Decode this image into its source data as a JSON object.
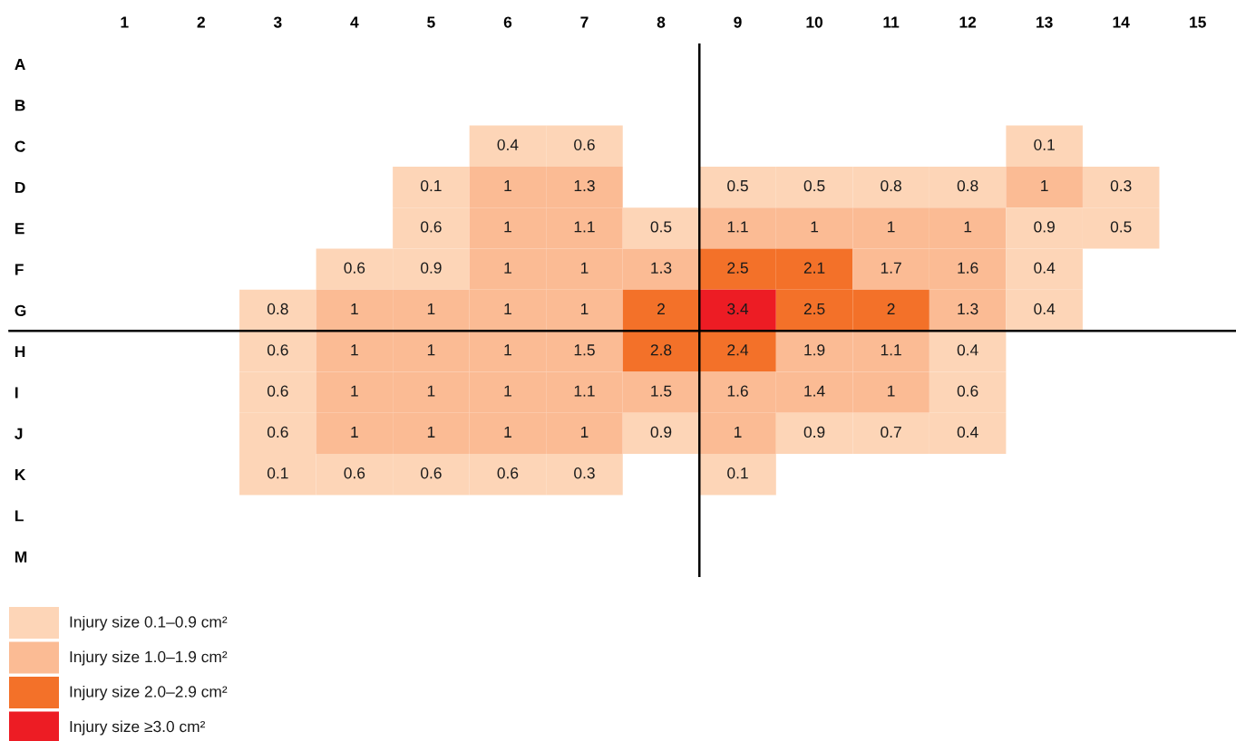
{
  "chart_data": {
    "type": "heatmap",
    "categories": [
      "1",
      "2",
      "3",
      "4",
      "5",
      "6",
      "7",
      "8",
      "9",
      "10",
      "11",
      "12",
      "13",
      "14",
      "15"
    ],
    "y_categories": [
      "A",
      "B",
      "C",
      "D",
      "E",
      "F",
      "G",
      "H",
      "I",
      "J",
      "K",
      "L",
      "M"
    ],
    "cells": [
      [
        null,
        null,
        null,
        null,
        null,
        null,
        null,
        null,
        null,
        null,
        null,
        null,
        null,
        null,
        null
      ],
      [
        null,
        null,
        null,
        null,
        null,
        null,
        null,
        null,
        null,
        null,
        null,
        null,
        null,
        null,
        null
      ],
      [
        null,
        null,
        null,
        null,
        null,
        0.4,
        0.6,
        null,
        null,
        null,
        null,
        null,
        0.1,
        null,
        null
      ],
      [
        null,
        null,
        null,
        null,
        0.1,
        1,
        1.3,
        null,
        0.5,
        0.5,
        0.8,
        0.8,
        1,
        0.3,
        null
      ],
      [
        null,
        null,
        null,
        null,
        0.6,
        1,
        1.1,
        0.5,
        1.1,
        1,
        1,
        1,
        0.9,
        0.5,
        null
      ],
      [
        null,
        null,
        null,
        0.6,
        0.9,
        1,
        1,
        1.3,
        2.5,
        2.1,
        1.7,
        1.6,
        0.4,
        null,
        null
      ],
      [
        null,
        null,
        0.8,
        1,
        1,
        1,
        1,
        2,
        3.4,
        2.5,
        2,
        1.3,
        0.4,
        null,
        null
      ],
      [
        null,
        null,
        0.6,
        1,
        1,
        1,
        1.5,
        2.8,
        2.4,
        1.9,
        1.1,
        0.4,
        null,
        null,
        null
      ],
      [
        null,
        null,
        0.6,
        1,
        1,
        1,
        1.1,
        1.5,
        1.6,
        1.4,
        1,
        0.6,
        null,
        null,
        null
      ],
      [
        null,
        null,
        0.6,
        1,
        1,
        1,
        1,
        0.9,
        1,
        0.9,
        0.7,
        0.4,
        null,
        null,
        null
      ],
      [
        null,
        null,
        0.1,
        0.6,
        0.6,
        0.6,
        0.3,
        null,
        0.1,
        null,
        null,
        null,
        null,
        null,
        null
      ],
      [
        null,
        null,
        null,
        null,
        null,
        null,
        null,
        null,
        null,
        null,
        null,
        null,
        null,
        null,
        null
      ],
      [
        null,
        null,
        null,
        null,
        null,
        null,
        null,
        null,
        null,
        null,
        null,
        null,
        null,
        null,
        null
      ]
    ],
    "colors": [
      [
        null,
        null,
        null,
        null,
        null,
        null,
        null,
        null,
        null,
        null,
        null,
        null,
        null,
        null,
        null
      ],
      [
        null,
        null,
        null,
        null,
        null,
        null,
        null,
        null,
        null,
        null,
        null,
        null,
        null,
        null,
        null
      ],
      [
        null,
        null,
        null,
        null,
        null,
        "#fdd5b7",
        "#fdd5b7",
        null,
        null,
        null,
        null,
        null,
        "#fdd5b7",
        null,
        null
      ],
      [
        null,
        null,
        null,
        null,
        "#fdd5b7",
        "#fbbb94",
        "#fbbb94",
        null,
        "#fdd5b7",
        "#fdd5b7",
        "#fdd5b7",
        "#fdd5b7",
        "#fbbb94",
        "#fdd5b7",
        null
      ],
      [
        null,
        null,
        null,
        null,
        "#fdd5b7",
        "#fbbb94",
        "#fbbb94",
        "#fdd5b7",
        "#fbbb94",
        "#fbbb94",
        "#fbbb94",
        "#fbbb94",
        "#fdd5b7",
        "#fdd5b7",
        null
      ],
      [
        null,
        null,
        null,
        "#fdd5b7",
        "#fdd5b7",
        "#fbbb94",
        "#fbbb94",
        "#fbbb94",
        "#f37129",
        "#f37129",
        "#fbbb94",
        "#fbbb94",
        "#fdd5b7",
        null,
        null
      ],
      [
        null,
        null,
        "#fdd5b7",
        "#fbbb94",
        "#fbbb94",
        "#fbbb94",
        "#fbbb94",
        "#f37129",
        "#ed1c24",
        "#f37129",
        "#f37129",
        "#fbbb94",
        "#fdd5b7",
        null,
        null
      ],
      [
        null,
        null,
        "#fdd5b7",
        "#fbbb94",
        "#fbbb94",
        "#fbbb94",
        "#fbbb94",
        "#f37129",
        "#f37129",
        "#fbbb94",
        "#fbbb94",
        "#fdd5b7",
        null,
        null,
        null
      ],
      [
        null,
        null,
        "#fdd5b7",
        "#fbbb94",
        "#fbbb94",
        "#fbbb94",
        "#fbbb94",
        "#fbbb94",
        "#fbbb94",
        "#fbbb94",
        "#fbbb94",
        "#fdd5b7",
        null,
        null,
        null
      ],
      [
        null,
        null,
        "#fdd5b7",
        "#fbbb94",
        "#fbbb94",
        "#fbbb94",
        "#fbbb94",
        "#fdd5b7",
        "#fbbb94",
        "#fdd5b7",
        "#fdd5b7",
        "#fdd5b7",
        null,
        null,
        null
      ],
      [
        null,
        null,
        "#fdd5b7",
        "#fdd5b7",
        "#fdd5b7",
        "#fdd5b7",
        "#fdd5b7",
        null,
        "#fdd5b7",
        null,
        null,
        null,
        null,
        null,
        null
      ],
      [
        null,
        null,
        null,
        null,
        null,
        null,
        null,
        null,
        null,
        null,
        null,
        null,
        null,
        null,
        null
      ],
      [
        null,
        null,
        null,
        null,
        null,
        null,
        null,
        null,
        null,
        null,
        null,
        null,
        null,
        null,
        null
      ]
    ],
    "annotations": [
      "Injury size 0.1–0.9 cm²",
      "Injury size 1.0–1.9 cm²",
      "Injury size 2.0–2.9 cm²",
      "Injury size ≥3.0 cm²"
    ],
    "data_labels": true
  }
}
